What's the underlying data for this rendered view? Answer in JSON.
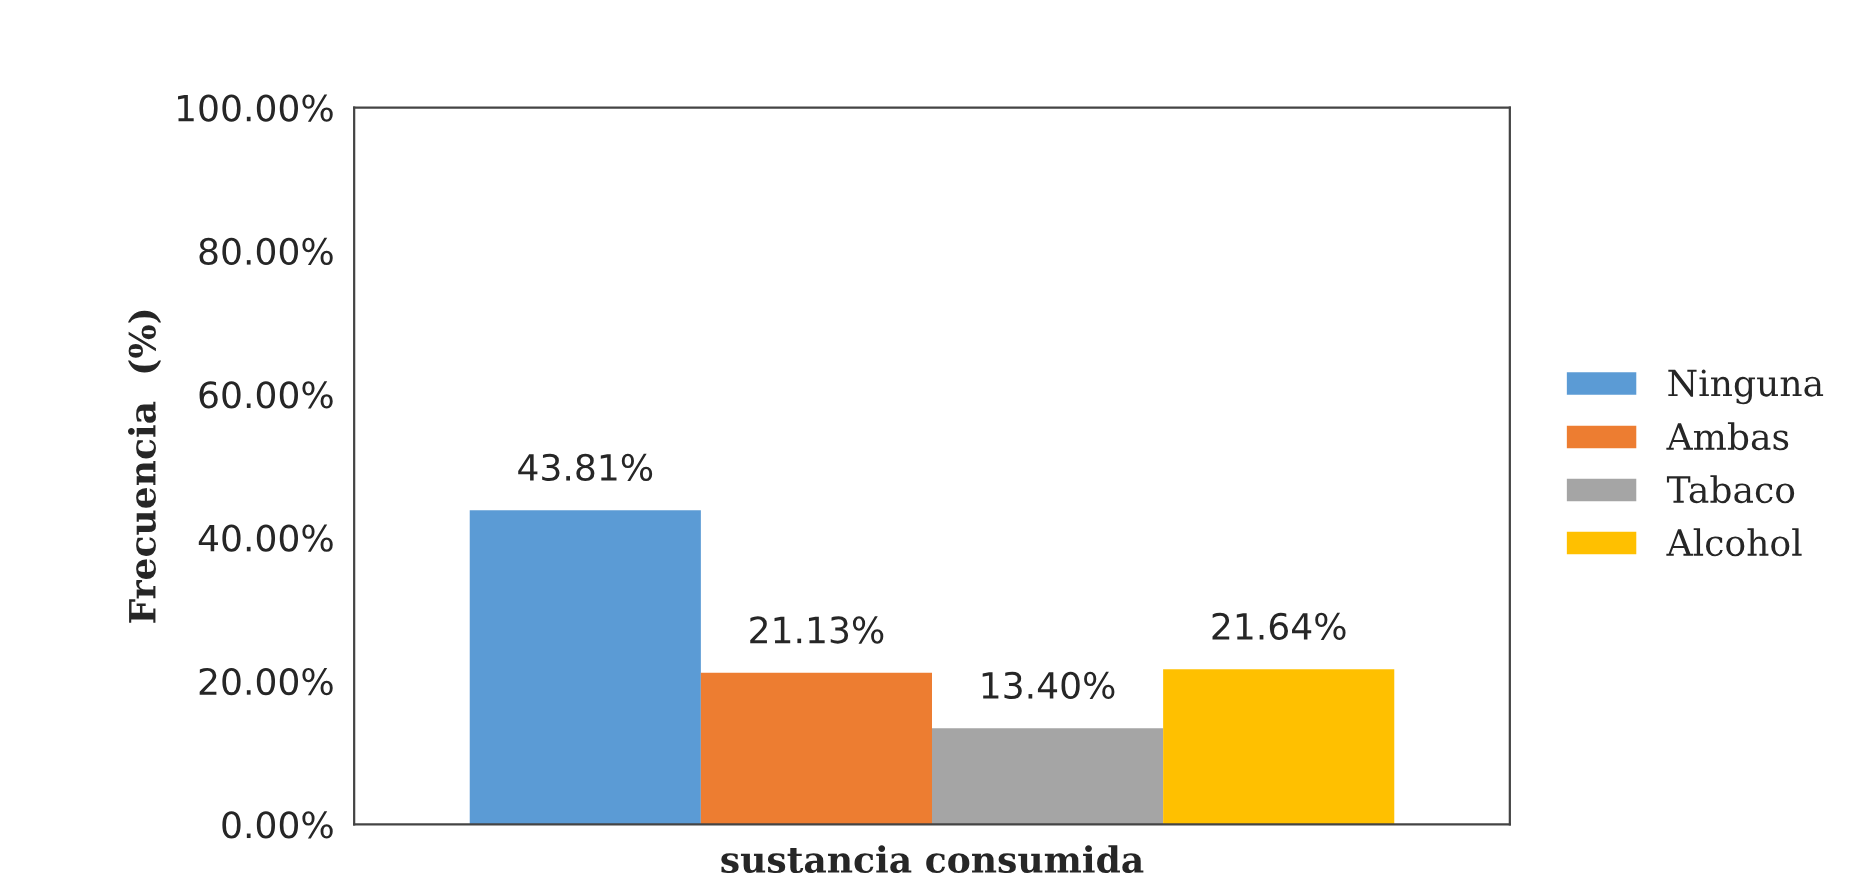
{
  "chart_data": {
    "type": "bar",
    "xlabel": "sustancia consumida",
    "ylabel": "Frecuencia  (%)",
    "categories": [
      null
    ],
    "series": [
      {
        "name": "Ninguna",
        "color": "#5b9bd5",
        "values": [
          43.81
        ],
        "value_labels": [
          "43.81%"
        ]
      },
      {
        "name": "Ambas",
        "color": "#ed7d31",
        "values": [
          21.13
        ],
        "value_labels": [
          "21.13%"
        ]
      },
      {
        "name": "Tabaco",
        "color": "#a5a5a5",
        "values": [
          13.4
        ],
        "value_labels": [
          "13.40%"
        ]
      },
      {
        "name": "Alcohol",
        "color": "#ffc000",
        "values": [
          21.64
        ],
        "value_labels": [
          "21.64%"
        ]
      }
    ],
    "ylim": [
      0,
      100
    ],
    "yticks": [
      {
        "value": 0,
        "label": "0.00%"
      },
      {
        "value": 20,
        "label": "20.00%"
      },
      {
        "value": 40,
        "label": "40.00%"
      },
      {
        "value": 60,
        "label": "60.00%"
      },
      {
        "value": 80,
        "label": "80.00%"
      },
      {
        "value": 100,
        "label": "100.00%"
      }
    ],
    "grid": false,
    "legend": "right"
  }
}
